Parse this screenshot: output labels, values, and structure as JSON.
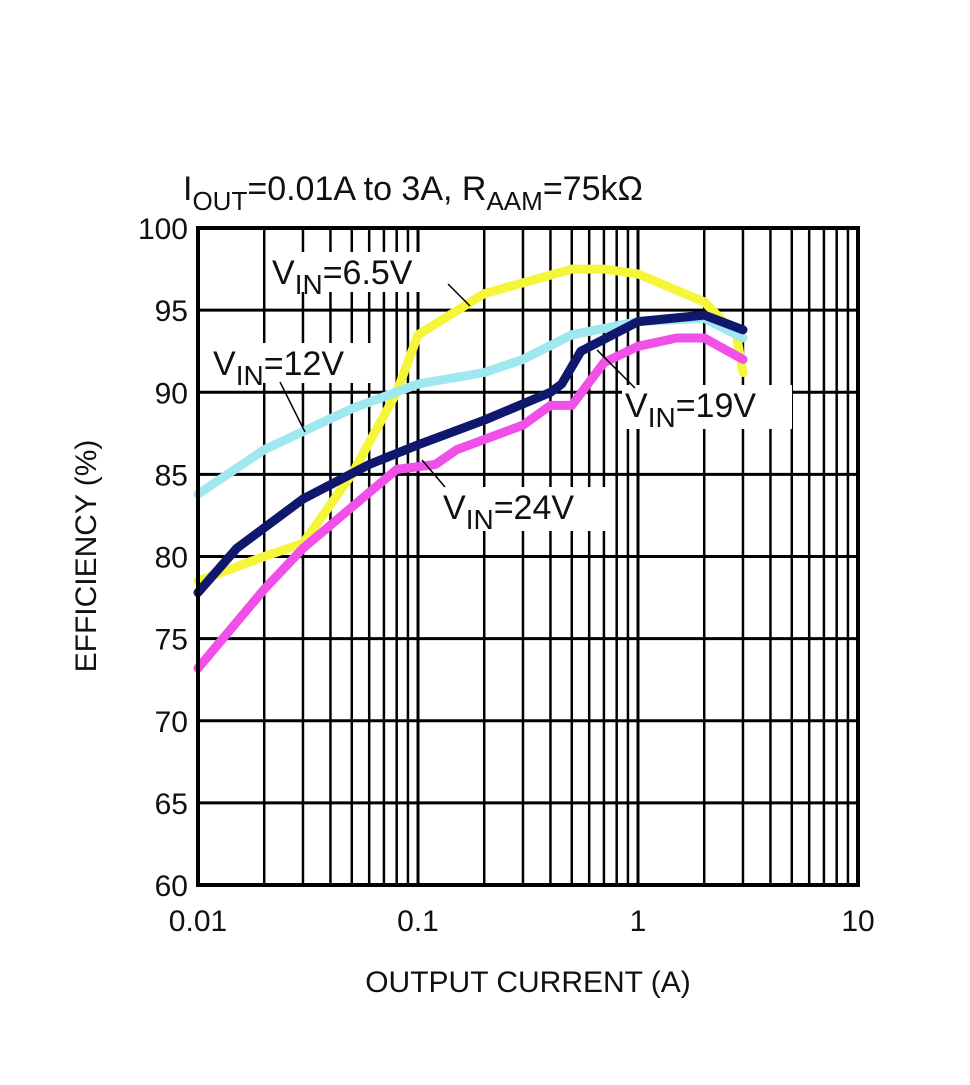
{
  "chart_data": {
    "type": "line",
    "title_parts": {
      "i": "I",
      "i_sub": "OUT",
      "mid": "=0.01A to 3A, R",
      "r_sub": "AAM",
      "end": "=75kΩ"
    },
    "xlabel": "OUTPUT CURRENT (A)",
    "ylabel": "EFFICIENCY (%)",
    "xscale": "log",
    "xlim": [
      0.01,
      10
    ],
    "ylim": [
      60,
      100
    ],
    "xticks": [
      0.01,
      0.1,
      1,
      10
    ],
    "xtick_labels": [
      "0.01",
      "0.1",
      "1",
      "10"
    ],
    "yticks": [
      60,
      65,
      70,
      75,
      80,
      85,
      90,
      95,
      100
    ],
    "ytick_labels": [
      "60",
      "65",
      "70",
      "75",
      "80",
      "85",
      "90",
      "95",
      "100"
    ],
    "grid": true,
    "series": [
      {
        "name": "VIN=6.5V",
        "label_main": "V",
        "label_sub": "IN",
        "label_end": "=6.5V",
        "color": "#f5f53a",
        "x": [
          0.01,
          0.02,
          0.03,
          0.05,
          0.08,
          0.1,
          0.2,
          0.5,
          0.7,
          1,
          2,
          2.8,
          3
        ],
        "y": [
          78.5,
          80,
          80.8,
          85,
          90,
          93.5,
          96,
          97.5,
          97.5,
          97.2,
          95.5,
          93.5,
          91.2
        ]
      },
      {
        "name": "VIN=12V",
        "label_main": "V",
        "label_sub": "IN",
        "label_end": "=12V",
        "color": "#9fe8ef",
        "x": [
          0.01,
          0.02,
          0.05,
          0.1,
          0.2,
          0.3,
          0.5,
          1,
          2,
          3
        ],
        "y": [
          83.8,
          86.5,
          89,
          90.5,
          91.2,
          92,
          93.5,
          94.3,
          94.5,
          93.3
        ]
      },
      {
        "name": "VIN=19V",
        "label_main": "V",
        "label_sub": "IN",
        "label_end": "=19V",
        "color": "#10186e",
        "x": [
          0.01,
          0.015,
          0.03,
          0.06,
          0.1,
          0.2,
          0.4,
          0.45,
          0.55,
          1,
          2,
          3
        ],
        "y": [
          77.8,
          80.5,
          83.5,
          85.6,
          86.8,
          88.3,
          90,
          90.5,
          92.5,
          94.3,
          94.7,
          93.8
        ]
      },
      {
        "name": "VIN=24V",
        "label_main": "V",
        "label_sub": "IN",
        "label_end": "=24V",
        "color": "#f050e8",
        "x": [
          0.01,
          0.02,
          0.03,
          0.05,
          0.08,
          0.12,
          0.15,
          0.3,
          0.4,
          0.5,
          0.7,
          1,
          1.5,
          2,
          3
        ],
        "y": [
          73.2,
          78,
          80.5,
          83,
          85.3,
          85.6,
          86.5,
          88,
          89.2,
          89.2,
          91.8,
          92.8,
          93.3,
          93.3,
          92
        ]
      }
    ]
  }
}
